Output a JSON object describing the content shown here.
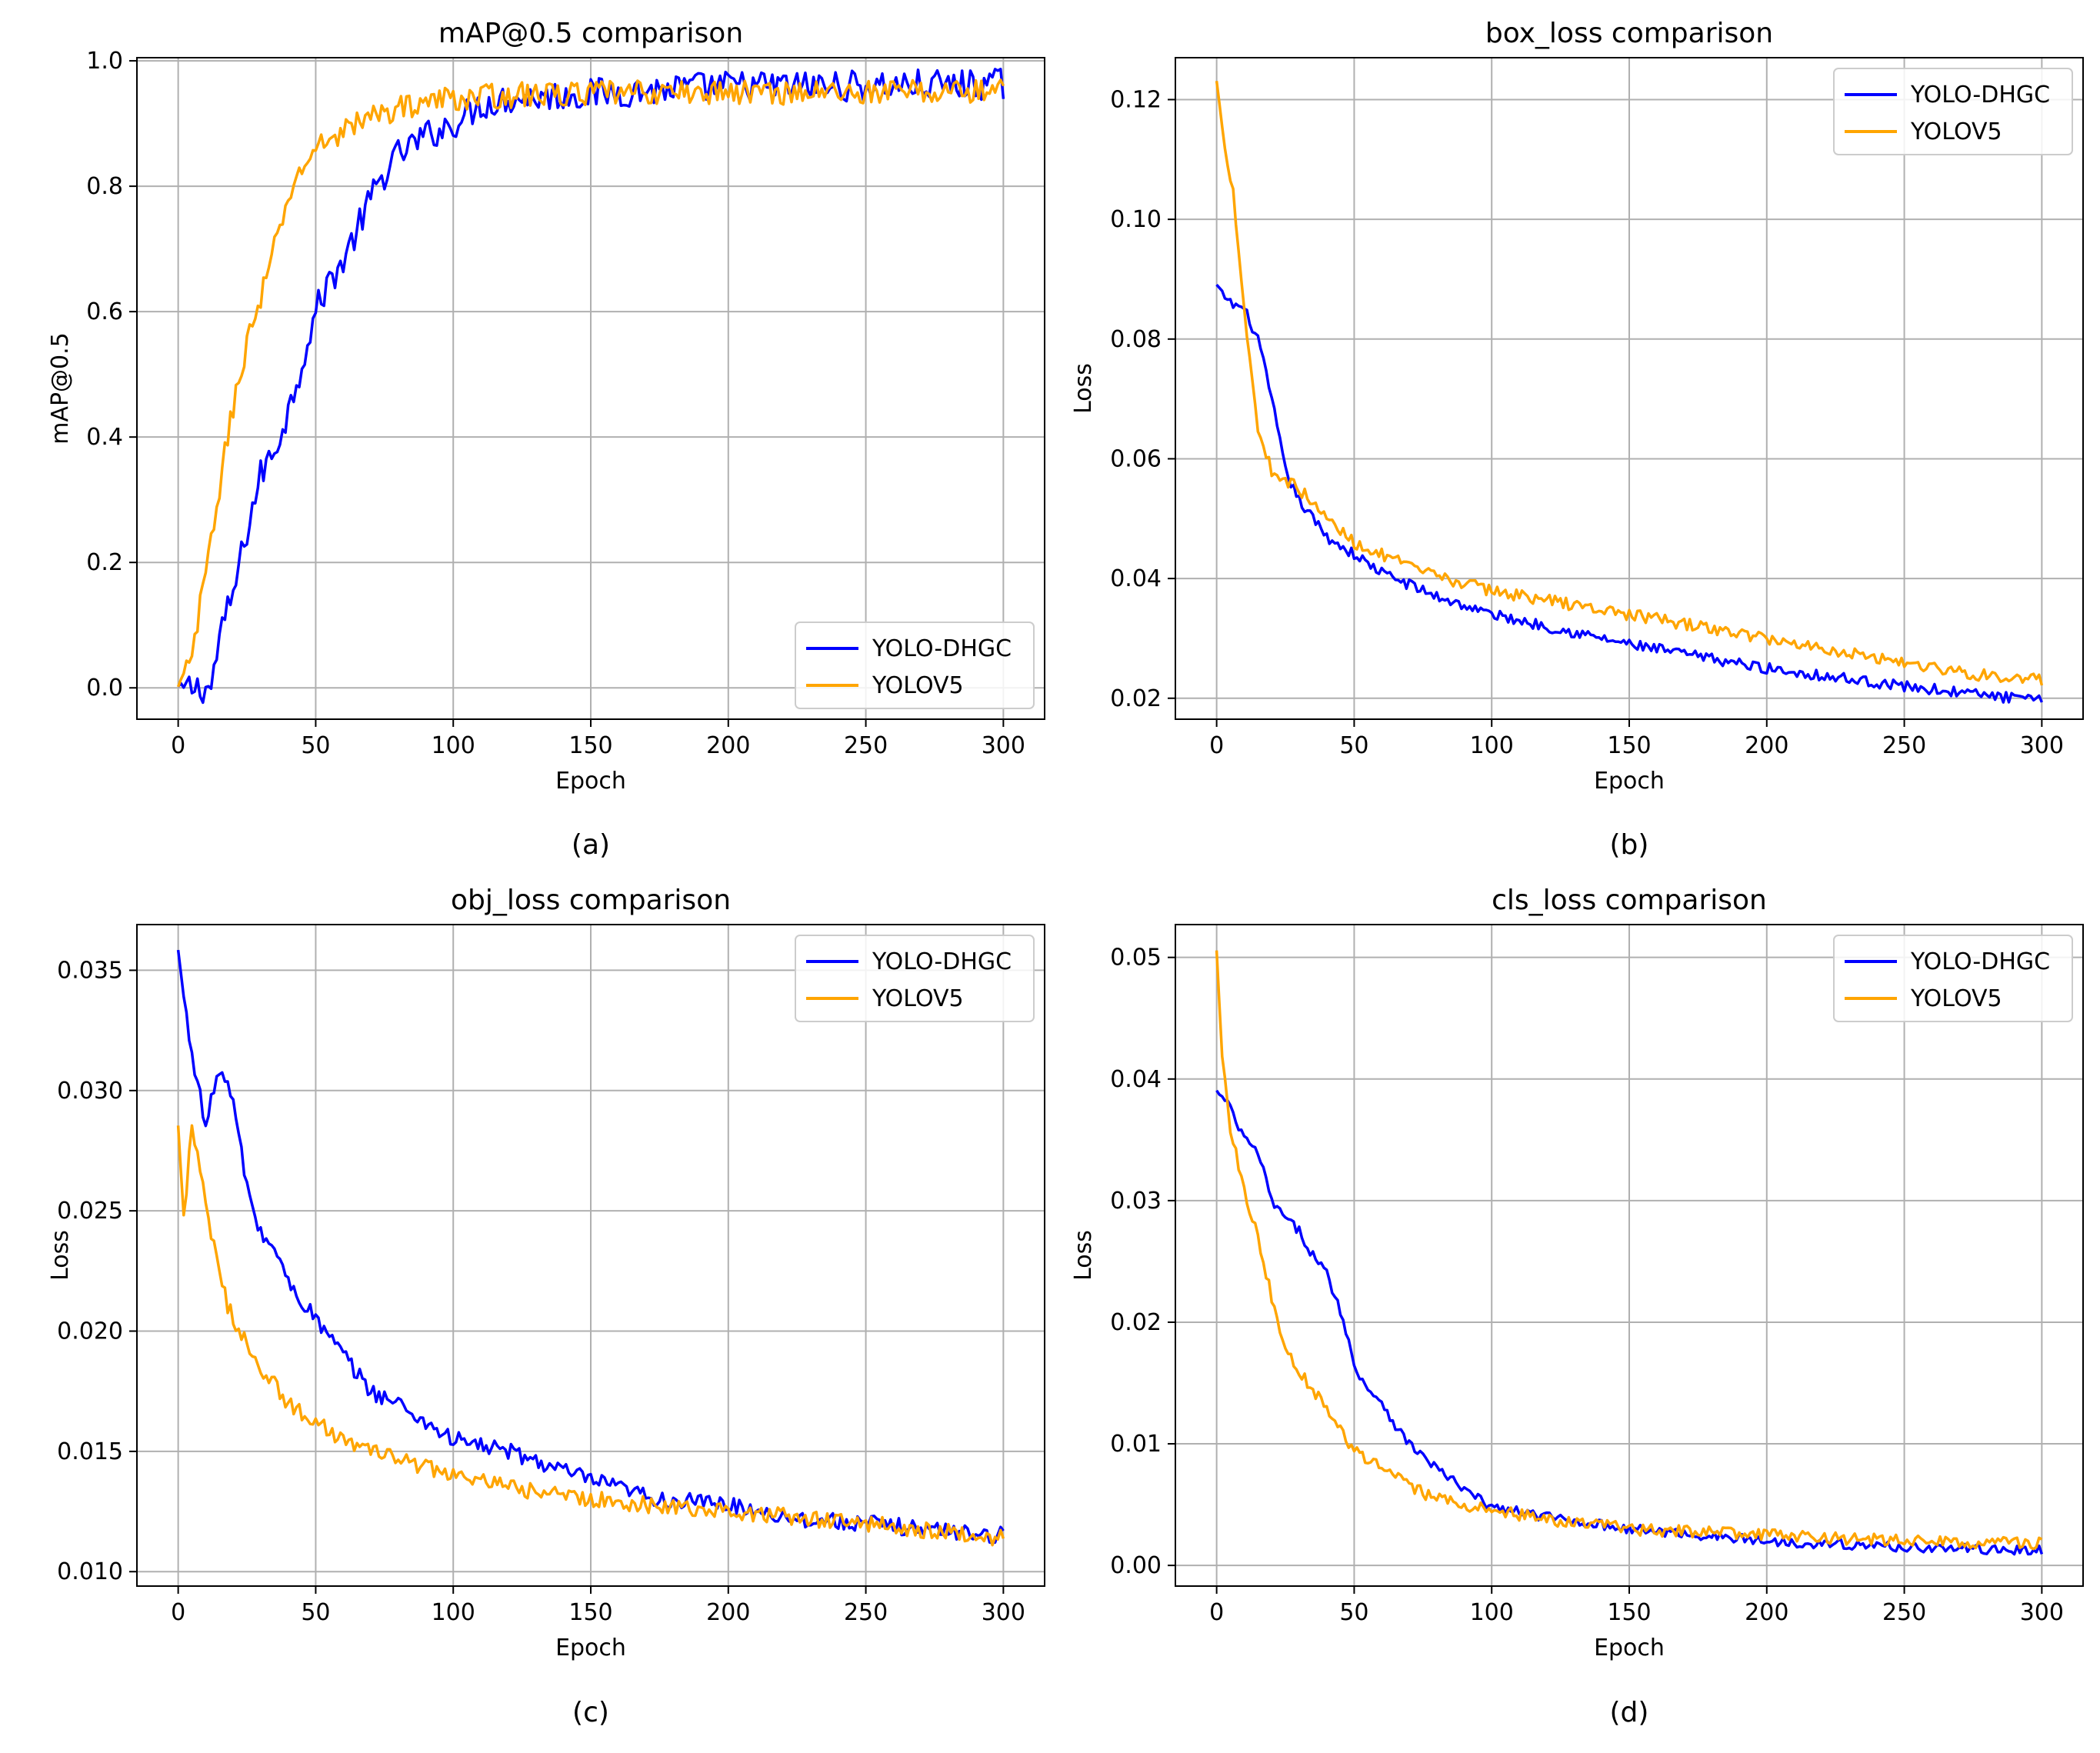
{
  "colors": {
    "series_1": "#0000ff",
    "series_2": "#ffa500",
    "grid": "#b0b0b0"
  },
  "chart_data": [
    {
      "id": "a",
      "type": "line",
      "caption": "(a)",
      "title": "mAP@0.5 comparison",
      "xlabel": "Epoch",
      "ylabel": "mAP@0.5",
      "xlim": [
        -15,
        315
      ],
      "ylim": [
        -0.05,
        1.005
      ],
      "xticks": [
        0,
        50,
        100,
        150,
        200,
        250,
        300
      ],
      "xtick_labels": [
        "0",
        "50",
        "100",
        "150",
        "200",
        "250",
        "300"
      ],
      "yticks": [
        0,
        0.2,
        0.4,
        0.6,
        0.8,
        1.0
      ],
      "ytick_labels": [
        "0.0",
        "0.2",
        "0.4",
        "0.6",
        "0.8",
        "1.0"
      ],
      "grid": true,
      "legend": "lower-right",
      "series": [
        {
          "name": "YOLO-DHGC",
          "color": "#0000ff",
          "noise": 0.025,
          "points": [
            [
              0,
              0
            ],
            [
              12,
              0
            ],
            [
              15,
              0.08
            ],
            [
              20,
              0.15
            ],
            [
              25,
              0.25
            ],
            [
              30,
              0.34
            ],
            [
              35,
              0.38
            ],
            [
              40,
              0.44
            ],
            [
              45,
              0.52
            ],
            [
              50,
              0.6
            ],
            [
              55,
              0.65
            ],
            [
              60,
              0.68
            ],
            [
              65,
              0.73
            ],
            [
              70,
              0.78
            ],
            [
              75,
              0.82
            ],
            [
              80,
              0.85
            ],
            [
              90,
              0.88
            ],
            [
              100,
              0.9
            ],
            [
              110,
              0.93
            ],
            [
              120,
              0.94
            ],
            [
              140,
              0.945
            ],
            [
              160,
              0.95
            ],
            [
              180,
              0.955
            ],
            [
              200,
              0.96
            ],
            [
              250,
              0.96
            ],
            [
              300,
              0.963
            ]
          ]
        },
        {
          "name": "YOLOV5",
          "color": "#ffa500",
          "noise": 0.02,
          "points": [
            [
              0,
              0
            ],
            [
              5,
              0.05
            ],
            [
              10,
              0.18
            ],
            [
              15,
              0.32
            ],
            [
              20,
              0.45
            ],
            [
              25,
              0.55
            ],
            [
              30,
              0.62
            ],
            [
              35,
              0.7
            ],
            [
              40,
              0.78
            ],
            [
              45,
              0.83
            ],
            [
              50,
              0.86
            ],
            [
              60,
              0.89
            ],
            [
              70,
              0.91
            ],
            [
              80,
              0.925
            ],
            [
              90,
              0.935
            ],
            [
              100,
              0.94
            ],
            [
              120,
              0.945
            ],
            [
              150,
              0.948
            ],
            [
              200,
              0.95
            ],
            [
              250,
              0.95
            ],
            [
              300,
              0.952
            ]
          ]
        }
      ]
    },
    {
      "id": "b",
      "type": "line",
      "caption": "(b)",
      "title": "box_loss comparison",
      "xlabel": "Epoch",
      "ylabel": "Loss",
      "xlim": [
        -15,
        315
      ],
      "ylim": [
        0.0165,
        0.127
      ],
      "xticks": [
        0,
        50,
        100,
        150,
        200,
        250,
        300
      ],
      "xtick_labels": [
        "0",
        "50",
        "100",
        "150",
        "200",
        "250",
        "300"
      ],
      "yticks": [
        0.02,
        0.04,
        0.06,
        0.08,
        0.1,
        0.12
      ],
      "ytick_labels": [
        "0.02",
        "0.04",
        "0.06",
        "0.08",
        "0.10",
        "0.12"
      ],
      "grid": true,
      "legend": "upper-right",
      "series": [
        {
          "name": "YOLO-DHGC",
          "color": "#0000ff",
          "noise": 0.0009,
          "points": [
            [
              0,
              0.089
            ],
            [
              5,
              0.086
            ],
            [
              10,
              0.085
            ],
            [
              15,
              0.08
            ],
            [
              20,
              0.07
            ],
            [
              25,
              0.058
            ],
            [
              30,
              0.053
            ],
            [
              35,
              0.05
            ],
            [
              40,
              0.047
            ],
            [
              50,
              0.044
            ],
            [
              60,
              0.041
            ],
            [
              70,
              0.039
            ],
            [
              80,
              0.037
            ],
            [
              100,
              0.034
            ],
            [
              120,
              0.032
            ],
            [
              150,
              0.029
            ],
            [
              200,
              0.025
            ],
            [
              250,
              0.022
            ],
            [
              300,
              0.0195
            ]
          ]
        },
        {
          "name": "YOLOV5",
          "color": "#ffa500",
          "noise": 0.001,
          "points": [
            [
              0,
              0.123
            ],
            [
              3,
              0.112
            ],
            [
              6,
              0.105
            ],
            [
              10,
              0.085
            ],
            [
              15,
              0.065
            ],
            [
              20,
              0.058
            ],
            [
              30,
              0.055
            ],
            [
              40,
              0.05
            ],
            [
              50,
              0.046
            ],
            [
              60,
              0.044
            ],
            [
              75,
              0.041
            ],
            [
              100,
              0.038
            ],
            [
              125,
              0.036
            ],
            [
              150,
              0.034
            ],
            [
              175,
              0.032
            ],
            [
              200,
              0.03
            ],
            [
              225,
              0.028
            ],
            [
              250,
              0.026
            ],
            [
              275,
              0.024
            ],
            [
              300,
              0.023
            ]
          ]
        }
      ]
    },
    {
      "id": "c",
      "type": "line",
      "caption": "(c)",
      "title": "obj_loss comparison",
      "xlabel": "Epoch",
      "ylabel": "Loss",
      "xlim": [
        -15,
        315
      ],
      "ylim": [
        0.0094,
        0.0369
      ],
      "xticks": [
        0,
        50,
        100,
        150,
        200,
        250,
        300
      ],
      "xtick_labels": [
        "0",
        "50",
        "100",
        "150",
        "200",
        "250",
        "300"
      ],
      "yticks": [
        0.01,
        0.015,
        0.02,
        0.025,
        0.03,
        0.035
      ],
      "ytick_labels": [
        "0.010",
        "0.015",
        "0.020",
        "0.025",
        "0.030",
        "0.035"
      ],
      "grid": true,
      "legend": "upper-right",
      "series": [
        {
          "name": "YOLO-DHGC",
          "color": "#0000ff",
          "noise": 0.00035,
          "points": [
            [
              0,
              0.0358
            ],
            [
              3,
              0.033
            ],
            [
              6,
              0.031
            ],
            [
              10,
              0.0285
            ],
            [
              15,
              0.031
            ],
            [
              20,
              0.0295
            ],
            [
              25,
              0.026
            ],
            [
              30,
              0.024
            ],
            [
              35,
              0.0235
            ],
            [
              40,
              0.022
            ],
            [
              50,
              0.0205
            ],
            [
              60,
              0.019
            ],
            [
              70,
              0.0175
            ],
            [
              80,
              0.017
            ],
            [
              90,
              0.0162
            ],
            [
              100,
              0.0155
            ],
            [
              120,
              0.015
            ],
            [
              140,
              0.0142
            ],
            [
              150,
              0.0138
            ],
            [
              175,
              0.013
            ],
            [
              200,
              0.0128
            ],
            [
              225,
              0.0122
            ],
            [
              250,
              0.012
            ],
            [
              300,
              0.0115
            ]
          ]
        },
        {
          "name": "YOLOV5",
          "color": "#ffa500",
          "noise": 0.00035,
          "points": [
            [
              0,
              0.0285
            ],
            [
              2,
              0.0248
            ],
            [
              5,
              0.0285
            ],
            [
              8,
              0.0265
            ],
            [
              12,
              0.024
            ],
            [
              18,
              0.021
            ],
            [
              25,
              0.0195
            ],
            [
              30,
              0.0185
            ],
            [
              40,
              0.017
            ],
            [
              50,
              0.0162
            ],
            [
              60,
              0.0155
            ],
            [
              70,
              0.015
            ],
            [
              80,
              0.0147
            ],
            [
              100,
              0.014
            ],
            [
              120,
              0.0135
            ],
            [
              150,
              0.013
            ],
            [
              200,
              0.0125
            ],
            [
              250,
              0.012
            ],
            [
              300,
              0.0114
            ]
          ]
        }
      ]
    },
    {
      "id": "d",
      "type": "line",
      "caption": "(d)",
      "title": "cls_loss comparison",
      "xlabel": "Epoch",
      "ylabel": "Loss",
      "xlim": [
        -15,
        315
      ],
      "ylim": [
        -0.0017,
        0.0527
      ],
      "xticks": [
        0,
        50,
        100,
        150,
        200,
        250,
        300
      ],
      "xtick_labels": [
        "0",
        "50",
        "100",
        "150",
        "200",
        "250",
        "300"
      ],
      "yticks": [
        0,
        0.01,
        0.02,
        0.03,
        0.04,
        0.05
      ],
      "ytick_labels": [
        "0.00",
        "0.01",
        "0.02",
        "0.03",
        "0.04",
        "0.05"
      ],
      "grid": true,
      "legend": "upper-right",
      "series": [
        {
          "name": "YOLO-DHGC",
          "color": "#0000ff",
          "noise": 0.0004,
          "points": [
            [
              0,
              0.039
            ],
            [
              4,
              0.038
            ],
            [
              8,
              0.036
            ],
            [
              12,
              0.0345
            ],
            [
              15,
              0.034
            ],
            [
              20,
              0.03
            ],
            [
              25,
              0.0285
            ],
            [
              30,
              0.0275
            ],
            [
              35,
              0.0255
            ],
            [
              40,
              0.024
            ],
            [
              45,
              0.021
            ],
            [
              50,
              0.0165
            ],
            [
              55,
              0.0145
            ],
            [
              60,
              0.0135
            ],
            [
              65,
              0.0115
            ],
            [
              70,
              0.01
            ],
            [
              75,
              0.009
            ],
            [
              80,
              0.008
            ],
            [
              90,
              0.0062
            ],
            [
              100,
              0.0048
            ],
            [
              120,
              0.004
            ],
            [
              150,
              0.003
            ],
            [
              200,
              0.002
            ],
            [
              250,
              0.0015
            ],
            [
              300,
              0.0012
            ]
          ]
        },
        {
          "name": "YOLOV5",
          "color": "#ffa500",
          "noise": 0.0005,
          "points": [
            [
              0,
              0.0505
            ],
            [
              2,
              0.042
            ],
            [
              5,
              0.036
            ],
            [
              10,
              0.031
            ],
            [
              15,
              0.027
            ],
            [
              20,
              0.022
            ],
            [
              25,
              0.018
            ],
            [
              30,
              0.016
            ],
            [
              35,
              0.0145
            ],
            [
              40,
              0.013
            ],
            [
              45,
              0.011
            ],
            [
              50,
              0.0095
            ],
            [
              60,
              0.008
            ],
            [
              70,
              0.0065
            ],
            [
              80,
              0.0055
            ],
            [
              100,
              0.0045
            ],
            [
              120,
              0.0038
            ],
            [
              150,
              0.003
            ],
            [
              200,
              0.0025
            ],
            [
              250,
              0.002
            ],
            [
              300,
              0.0018
            ]
          ]
        }
      ]
    }
  ]
}
